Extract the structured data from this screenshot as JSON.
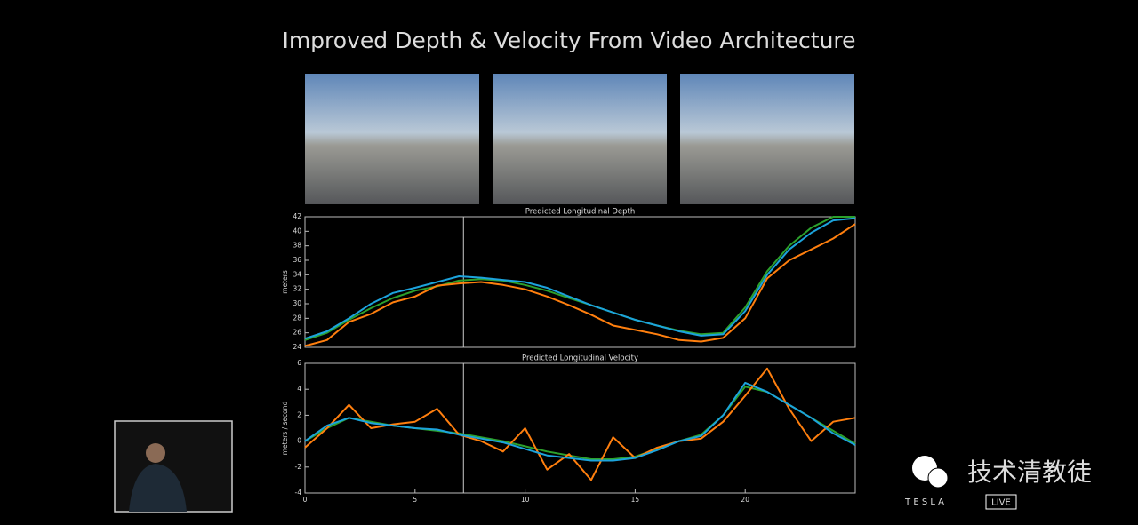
{
  "slide_title": "Improved Depth & Velocity From Video Architecture",
  "chart_data": [
    {
      "type": "line",
      "title": "Predicted Longitudinal Depth",
      "y_label": "meters",
      "x": [
        0,
        1,
        2,
        3,
        4,
        5,
        6,
        7,
        8,
        9,
        10,
        11,
        12,
        13,
        14,
        15,
        16,
        17,
        18,
        19,
        20,
        21,
        22,
        23,
        24,
        25
      ],
      "xlim": [
        0,
        25
      ],
      "ylim": [
        24,
        42
      ],
      "yticks": [
        24,
        26,
        28,
        30,
        32,
        34,
        36,
        38,
        40,
        42
      ],
      "vline": 7.2,
      "series": [
        {
          "color": "#2ca02c",
          "values": [
            25,
            26,
            27.8,
            29.4,
            30.8,
            31.8,
            32.4,
            33.2,
            33.4,
            33.2,
            32.6,
            31.8,
            30.8,
            29.8,
            28.8,
            27.8,
            27,
            26.3,
            25.8,
            26,
            29.5,
            34.5,
            38,
            40.5,
            42,
            42
          ]
        },
        {
          "color": "#ff7f0e",
          "values": [
            24.2,
            25,
            27.5,
            28.6,
            30.2,
            31,
            32.5,
            32.8,
            33,
            32.6,
            32,
            31,
            29.8,
            28.5,
            27,
            26.4,
            25.8,
            25,
            24.8,
            25.3,
            28,
            33.5,
            36,
            37.5,
            39,
            41
          ]
        },
        {
          "color": "#1ca3dc",
          "values": [
            25.2,
            26.2,
            28,
            30,
            31.5,
            32.2,
            33,
            33.8,
            33.6,
            33.3,
            33,
            32.2,
            31,
            29.8,
            28.8,
            27.8,
            27,
            26.2,
            25.6,
            25.8,
            29,
            34,
            37.5,
            39.8,
            41.5,
            41.8
          ]
        }
      ]
    },
    {
      "type": "line",
      "title": "Predicted Longitudinal Velocity",
      "y_label": "meters / second",
      "x": [
        0,
        1,
        2,
        3,
        4,
        5,
        6,
        7,
        8,
        9,
        10,
        11,
        12,
        13,
        14,
        15,
        16,
        17,
        18,
        19,
        20,
        21,
        22,
        23,
        24,
        25
      ],
      "xlim": [
        0,
        25
      ],
      "xticks": [
        0,
        5,
        10,
        15,
        20
      ],
      "ylim": [
        -4,
        6
      ],
      "yticks": [
        -4,
        -2,
        0,
        2,
        4,
        6
      ],
      "vline": 7.2,
      "series": [
        {
          "color": "#2ca02c",
          "values": [
            0,
            1,
            1.8,
            1.5,
            1.2,
            1,
            0.8,
            0.6,
            0.3,
            0,
            -0.4,
            -0.8,
            -1.1,
            -1.4,
            -1.4,
            -1.2,
            -0.6,
            0,
            0.5,
            2,
            4.2,
            3.8,
            2.8,
            1.8,
            0.8,
            -0.2
          ]
        },
        {
          "color": "#ff7f0e",
          "values": [
            -0.5,
            1,
            2.8,
            1,
            1.3,
            1.5,
            2.5,
            0.5,
            0,
            -0.8,
            1,
            -2.2,
            -1,
            -3,
            0.3,
            -1.3,
            -0.5,
            0,
            0.2,
            1.5,
            3.5,
            5.6,
            2.5,
            0,
            1.5,
            1.8
          ]
        },
        {
          "color": "#1ca3dc",
          "values": [
            0,
            1.2,
            1.8,
            1.4,
            1.2,
            1,
            0.9,
            0.5,
            0.2,
            -0.1,
            -0.6,
            -1.1,
            -1.3,
            -1.5,
            -1.5,
            -1.3,
            -0.7,
            0,
            0.4,
            2,
            4.5,
            3.8,
            2.8,
            1.8,
            0.6,
            -0.3
          ]
        }
      ]
    }
  ],
  "watermark": "技术清教徒",
  "brand": "T E S L A",
  "badge": "LIVE"
}
